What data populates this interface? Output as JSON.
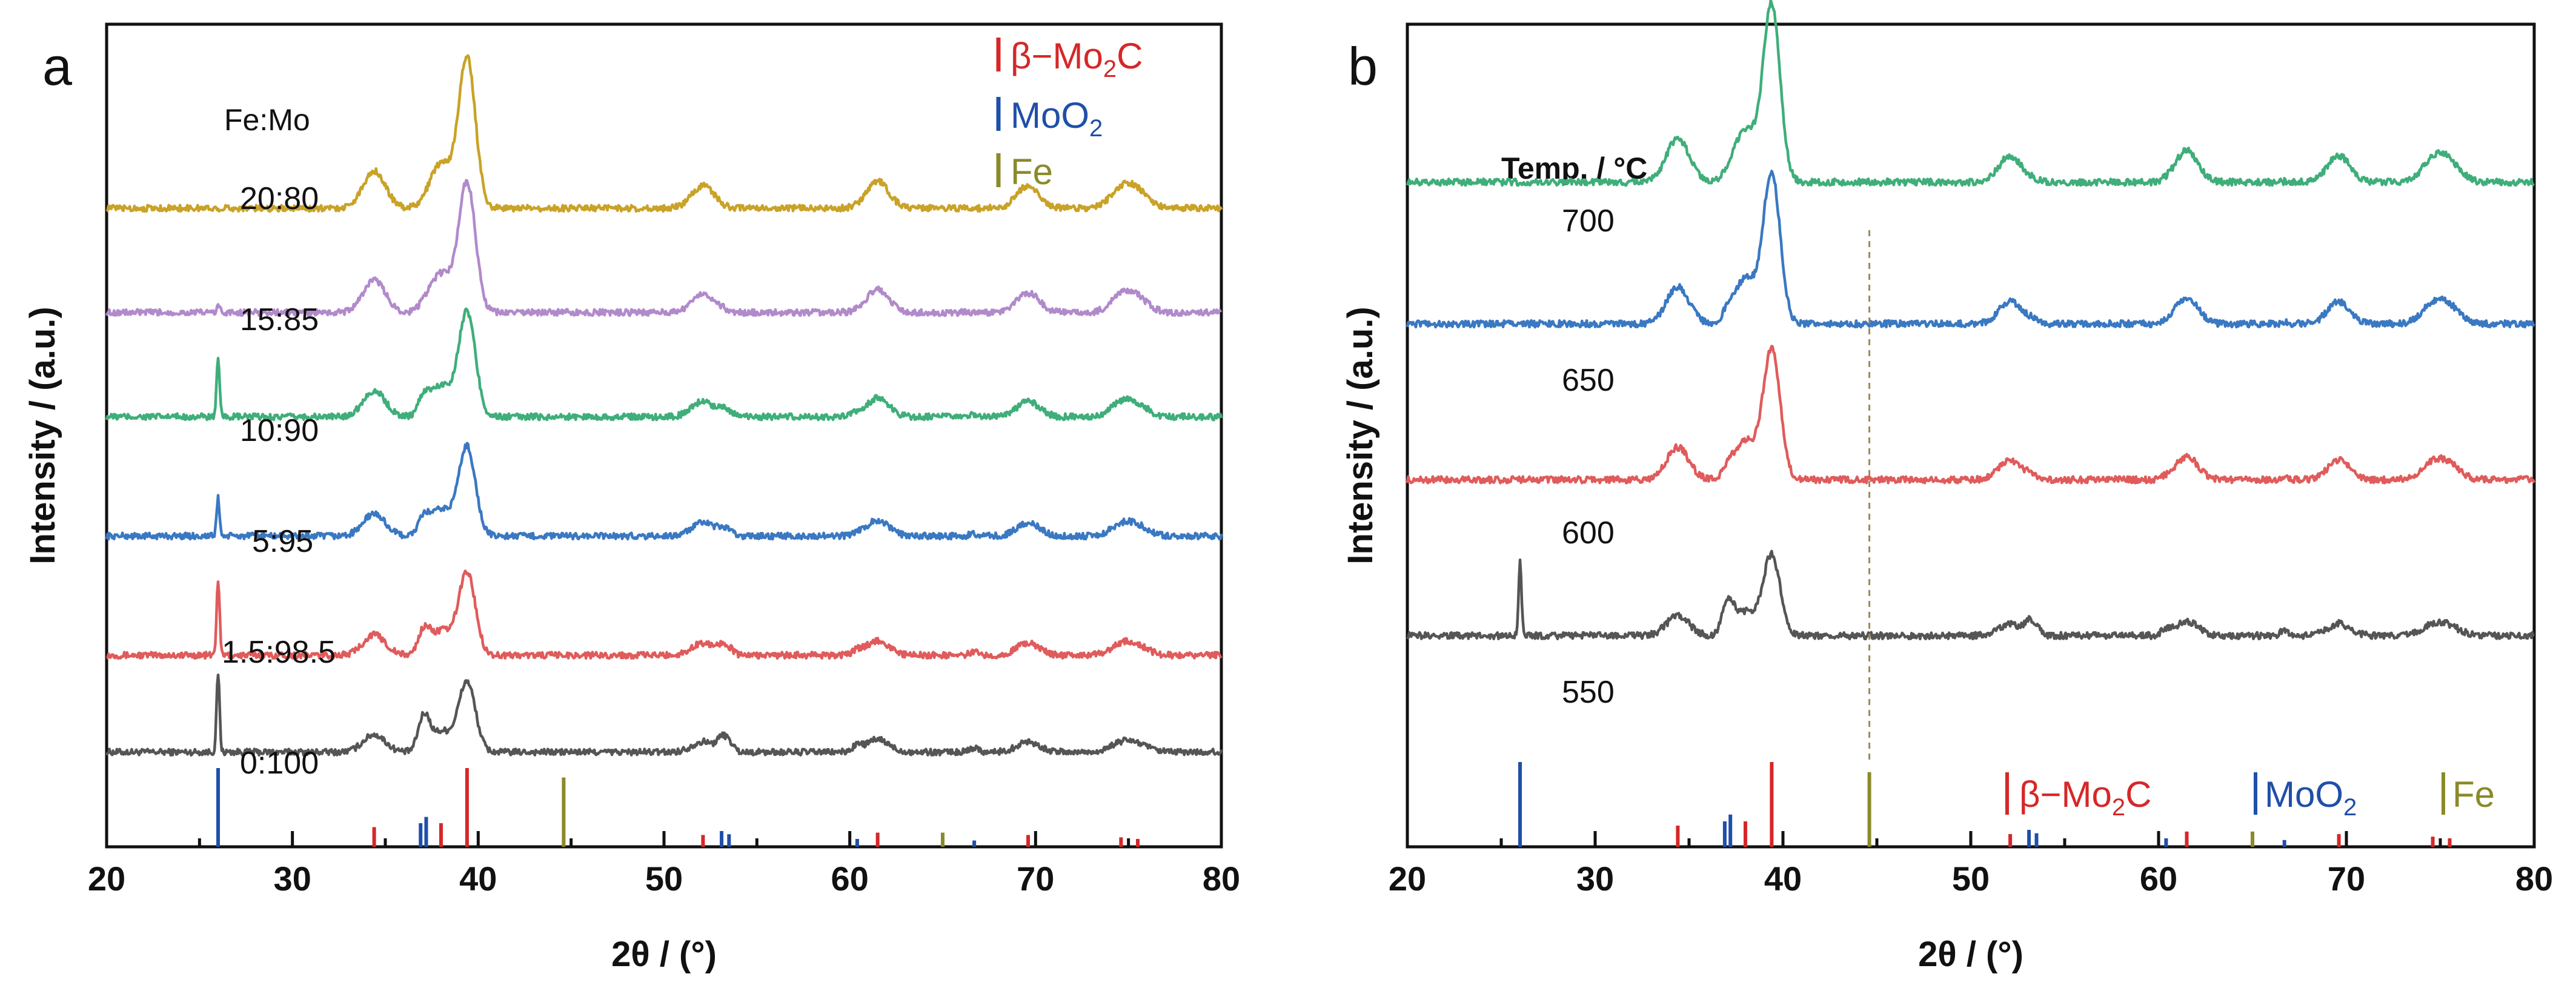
{
  "chart_data": [
    {
      "panel": "a",
      "type": "line",
      "xlabel": "2θ / (°)",
      "ylabel": "Intensity / (a.u.)",
      "xlim": [
        20,
        80
      ],
      "xticks": [
        "20",
        "30",
        "40",
        "50",
        "60",
        "70",
        "80"
      ],
      "header": "Fe:Mo",
      "series": [
        {
          "name": "0:100",
          "color": "#555555",
          "baseline": 0.08,
          "scale": 1.0,
          "mo2c": 0.55,
          "moo2": 0.45,
          "fe": 0.0,
          "sharp26": 0.62
        },
        {
          "name": "1.5:98.5",
          "color": "#e05b5b",
          "baseline": 0.21,
          "scale": 1.0,
          "mo2c": 0.65,
          "moo2": 0.3,
          "fe": 0.0,
          "sharp26": 0.6
        },
        {
          "name": "5:95",
          "color": "#3a78c2",
          "baseline": 0.37,
          "scale": 1.0,
          "mo2c": 0.7,
          "moo2": 0.2,
          "fe": 0.0,
          "sharp26": 0.3
        },
        {
          "name": "10:90",
          "color": "#3fae7a",
          "baseline": 0.53,
          "scale": 1.0,
          "mo2c": 0.82,
          "moo2": 0.22,
          "fe": 0.0,
          "sharp26": 0.45
        },
        {
          "name": "15:85",
          "color": "#b18acb",
          "baseline": 0.67,
          "scale": 1.0,
          "mo2c": 1.02,
          "moo2": 0.05,
          "fe": 0.0,
          "sharp26": 0.06
        },
        {
          "name": "20:80",
          "color": "#c9a227",
          "baseline": 0.81,
          "scale": 1.0,
          "mo2c": 1.18,
          "moo2": 0.0,
          "fe": 0.0,
          "sharp26": 0.0
        }
      ],
      "legend": [
        {
          "label": "β−Mo",
          "sub": "2",
          "tail": "C",
          "color": "#d62728"
        },
        {
          "label": "MoO",
          "sub": "2",
          "tail": "",
          "color": "#1f4fa8"
        },
        {
          "label": "Fe",
          "sub": "",
          "tail": "",
          "color": "#8a8a2a"
        }
      ]
    },
    {
      "panel": "b",
      "type": "line",
      "xlabel": "2θ / (°)",
      "ylabel": "Intensity / (a.u.)",
      "xlim": [
        20,
        80
      ],
      "xticks": [
        "20",
        "30",
        "40",
        "50",
        "60",
        "70",
        "80"
      ],
      "header": "Temp. / °C",
      "dashed_line_x": 44.6,
      "series": [
        {
          "name": "550",
          "color": "#555555",
          "baseline": 0.18,
          "scale": 1.0,
          "mo2c": 0.6,
          "moo2": 0.4,
          "fe": 0.0,
          "sharp26": 0.55
        },
        {
          "name": "600",
          "color": "#e05b5b",
          "baseline": 0.4,
          "scale": 1.0,
          "mo2c": 0.97,
          "moo2": 0.1,
          "fe": 0.0,
          "sharp26": 0.0
        },
        {
          "name": "650",
          "color": "#3a78c2",
          "baseline": 0.62,
          "scale": 1.0,
          "mo2c": 1.12,
          "moo2": 0.1,
          "fe": 0.0,
          "sharp26": 0.0
        },
        {
          "name": "700",
          "color": "#3fae7a",
          "baseline": 0.82,
          "scale": 1.0,
          "mo2c": 1.32,
          "moo2": 0.05,
          "fe": 0.0,
          "sharp26": 0.0
        }
      ],
      "legend": [
        {
          "label": "β−Mo",
          "sub": "2",
          "tail": "C",
          "color": "#d62728"
        },
        {
          "label": "MoO",
          "sub": "2",
          "tail": "",
          "color": "#1f4fa8"
        },
        {
          "label": "Fe",
          "sub": "",
          "tail": "",
          "color": "#8a8a2a"
        }
      ]
    }
  ],
  "reference_peaks": {
    "mo2c": [
      34.4,
      38.0,
      39.4,
      52.1,
      61.5,
      69.6,
      74.6,
      75.5
    ],
    "mo2c_h": [
      0.25,
      0.3,
      1.0,
      0.15,
      0.18,
      0.15,
      0.12,
      0.1
    ],
    "moo2": [
      26.0,
      36.9,
      37.2,
      53.1,
      53.5,
      60.4,
      66.7
    ],
    "moo2_h": [
      1.0,
      0.3,
      0.38,
      0.2,
      0.16,
      0.1,
      0.08
    ],
    "fe": [
      44.6,
      65.0
    ],
    "fe_h": [
      0.88,
      0.18
    ]
  }
}
